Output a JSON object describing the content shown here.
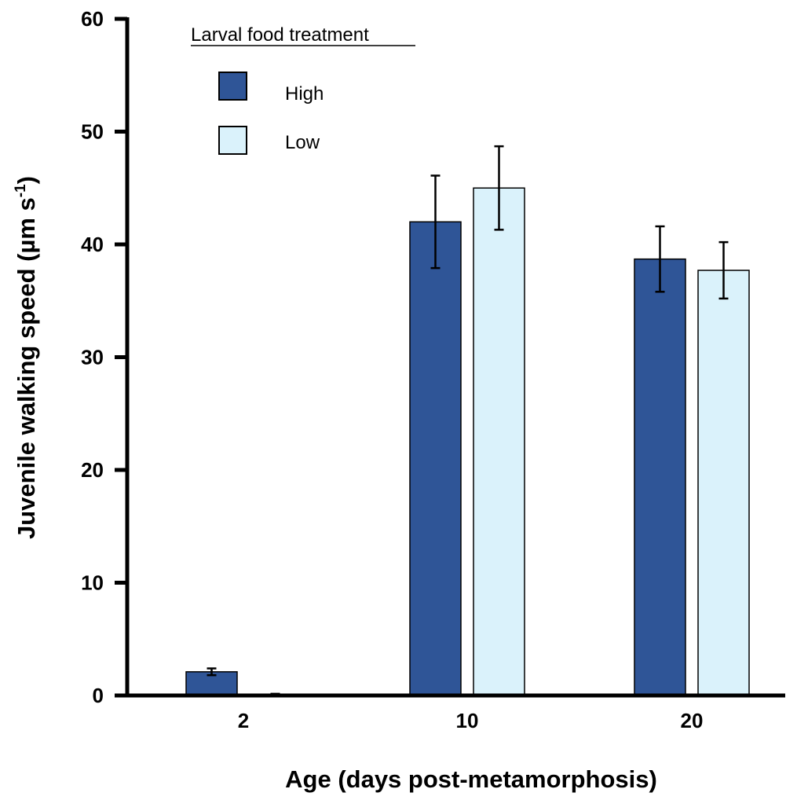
{
  "chart_data": {
    "type": "bar",
    "categories": [
      "2",
      "10",
      "20"
    ],
    "series": [
      {
        "name": "High",
        "values": [
          2.1,
          42.0,
          38.7
        ],
        "errors": [
          0.3,
          4.1,
          2.9
        ],
        "color": "#2F5597"
      },
      {
        "name": "Low",
        "values": [
          0.1,
          45.0,
          37.7
        ],
        "errors": [
          0.05,
          3.7,
          2.5
        ],
        "color": "#DAF2FB"
      }
    ],
    "xlabel": "Age (days post-metamorphosis)",
    "ylabel": "Juvenile walking speed (µm s",
    "ylabel_sup": "-1",
    "ylabel_close": ")",
    "ylim": [
      0,
      60
    ],
    "yticks": [
      0,
      10,
      20,
      30,
      40,
      50,
      60
    ],
    "legend_title": "Larval food treatment",
    "legend_placement": "top-left",
    "grid": false
  }
}
